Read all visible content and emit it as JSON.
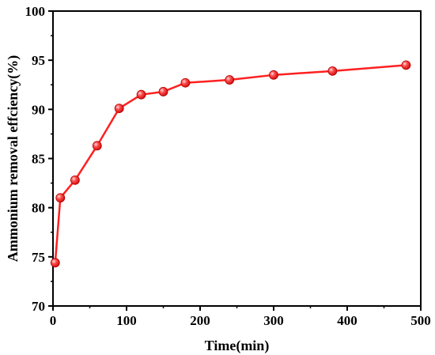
{
  "chart_data": {
    "type": "line",
    "title": "",
    "xlabel": "Time(min)",
    "ylabel": "Ammonium removal effciency(%)",
    "xlim": [
      0,
      500
    ],
    "ylim": [
      70,
      100
    ],
    "xticks": [
      0,
      100,
      200,
      300,
      400,
      500
    ],
    "yticks": [
      70,
      75,
      80,
      85,
      90,
      95,
      100
    ],
    "grid": false,
    "legend": "none",
    "series": [
      {
        "color": "#ff2020",
        "marker": "circle",
        "x": [
          3,
          10,
          30,
          60,
          90,
          120,
          150,
          180,
          240,
          300,
          380,
          480
        ],
        "y": [
          74.4,
          81.0,
          82.8,
          86.3,
          90.1,
          91.5,
          91.8,
          92.7,
          93.0,
          93.5,
          93.9,
          94.5
        ]
      }
    ]
  }
}
